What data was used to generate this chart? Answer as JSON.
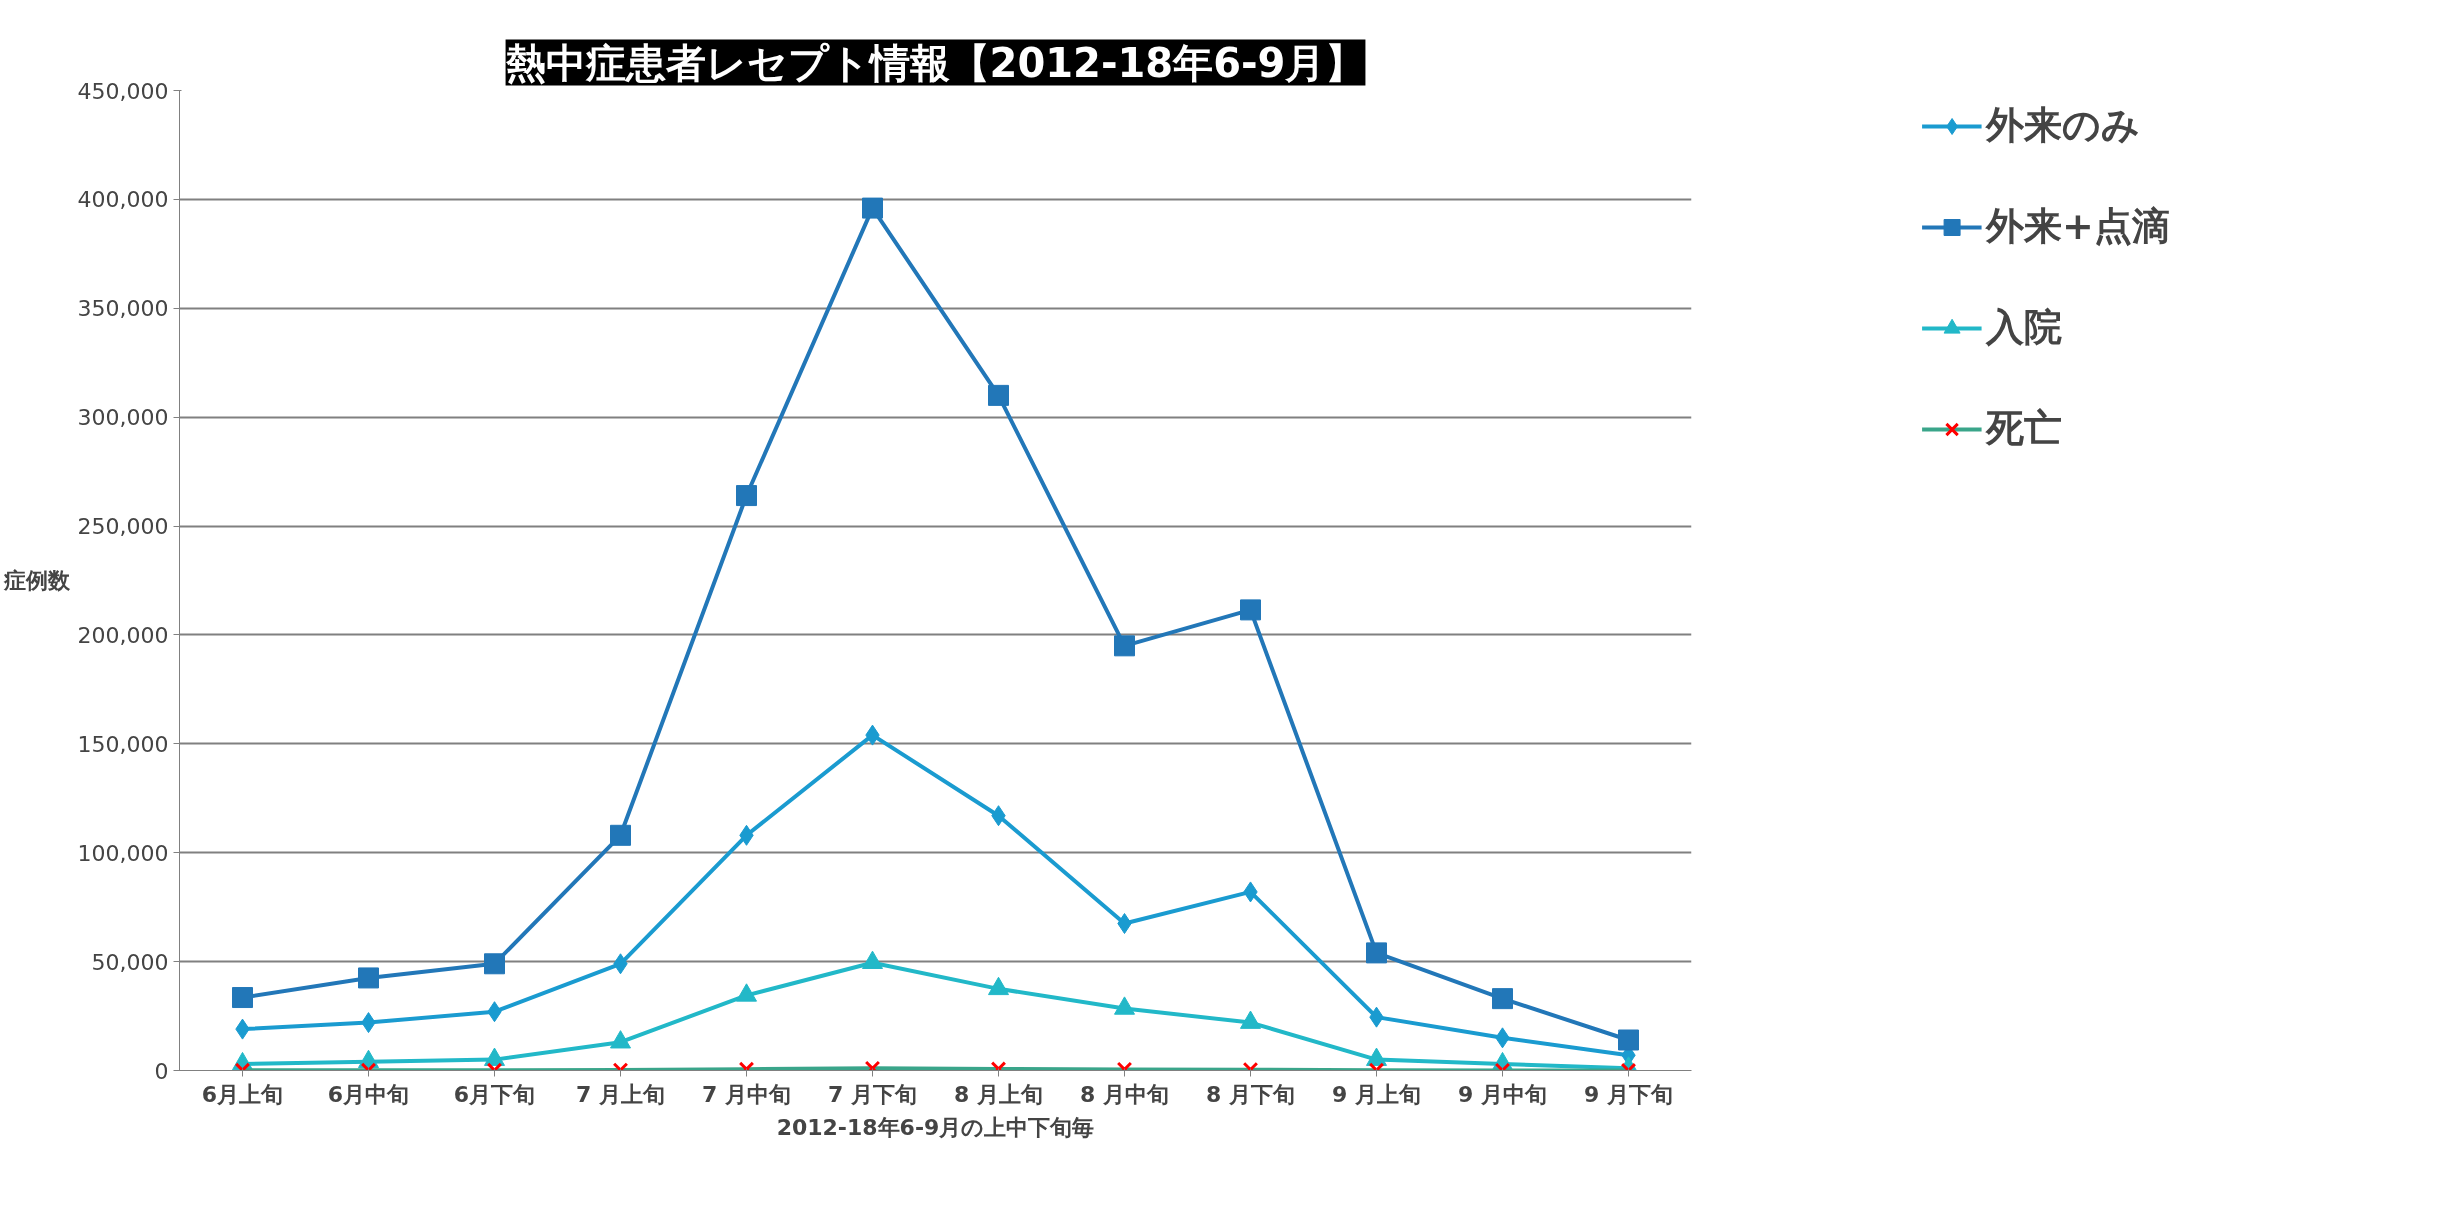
{
  "chart_data": {
    "type": "line",
    "title": "熱中症患者レセプト情報【2012-18年6-9月】",
    "xlabel": "2012-18年6-9月の上中下旬毎",
    "ylabel": "症例数",
    "categories": [
      "6月上旬",
      "6月中旬",
      "6月下旬",
      "7 月上旬",
      "7 月中旬",
      "7 月下旬",
      "8 月上旬",
      "8 月中旬",
      "8 月下旬",
      "9 月上旬",
      "9 月中旬",
      "9 月下旬"
    ],
    "series": [
      {
        "name": "外来のみ",
        "color": "#1a9bd0",
        "marker": "diamond",
        "values": [
          19000,
          22000,
          27000,
          49000,
          108000,
          154000,
          117000,
          67500,
          82000,
          24500,
          15000,
          7000
        ]
      },
      {
        "name": "外来+点滴",
        "color": "#2277b8",
        "marker": "square",
        "values": [
          33500,
          42500,
          49000,
          108000,
          264000,
          396000,
          310000,
          195000,
          211500,
          54000,
          33000,
          14000
        ]
      },
      {
        "name": "入院",
        "color": "#22b8c8",
        "marker": "triangle",
        "values": [
          3000,
          4000,
          5000,
          13000,
          34500,
          49500,
          37500,
          28500,
          22000,
          5000,
          3000,
          1000
        ]
      },
      {
        "name": "死亡",
        "color": "#3aa58a",
        "marker": "cross",
        "values": [
          100,
          100,
          100,
          200,
          600,
          1000,
          700,
          500,
          400,
          100,
          50,
          20
        ]
      }
    ],
    "ylim": [
      0,
      450000
    ],
    "yticks": [
      {
        "value": 0,
        "label": "0"
      },
      {
        "value": 50000,
        "label": "50,000"
      },
      {
        "value": 100000,
        "label": "100,000"
      },
      {
        "value": 150000,
        "label": "150,000"
      },
      {
        "value": 200000,
        "label": "200,000"
      },
      {
        "value": 250000,
        "label": "250,000"
      },
      {
        "value": 300000,
        "label": "300,000"
      },
      {
        "value": 350000,
        "label": "350,000"
      },
      {
        "value": 400000,
        "label": "400,000"
      },
      {
        "value": 450000,
        "label": "450,000"
      }
    ],
    "grid": "y",
    "legend": "right"
  }
}
